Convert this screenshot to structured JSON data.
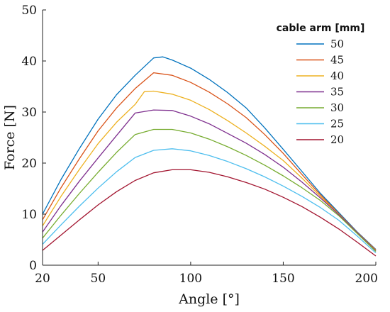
{
  "chart_data": {
    "type": "line",
    "xlabel": "Angle [°]",
    "ylabel": "Force [N]",
    "xlim": [
      20,
      200
    ],
    "ylim": [
      0,
      50
    ],
    "xticks": [
      20,
      50,
      100,
      150,
      200
    ],
    "yticks": [
      0,
      10,
      20,
      30,
      40,
      50
    ],
    "grid": false,
    "legend": {
      "title": "cable arm [mm]",
      "placement": "top-right"
    },
    "series": [
      {
        "name": "50",
        "color": "#0072BD",
        "x": [
          20,
          30,
          40,
          50,
          60,
          70,
          80,
          85,
          90,
          100,
          110,
          120,
          130,
          140,
          150,
          160,
          170,
          180,
          190,
          200
        ],
        "y": [
          10.0,
          16.8,
          22.9,
          28.6,
          33.4,
          37.2,
          40.6,
          40.8,
          40.2,
          38.6,
          36.4,
          33.8,
          30.8,
          26.9,
          22.7,
          18.4,
          14.1,
          10.3,
          6.5,
          3.1
        ]
      },
      {
        "name": "45",
        "color": "#D95319",
        "x": [
          20,
          30,
          40,
          50,
          60,
          70,
          80,
          90,
          100,
          110,
          120,
          130,
          140,
          150,
          160,
          170,
          180,
          190,
          200
        ],
        "y": [
          8.9,
          15.2,
          20.9,
          26.3,
          30.8,
          34.6,
          37.7,
          37.2,
          35.8,
          33.9,
          31.6,
          28.9,
          25.6,
          21.9,
          17.8,
          13.8,
          10.1,
          6.4,
          3.0
        ]
      },
      {
        "name": "40",
        "color": "#EDB120",
        "x": [
          20,
          30,
          40,
          50,
          60,
          70,
          75,
          80,
          90,
          100,
          110,
          120,
          130,
          140,
          150,
          160,
          170,
          180,
          190,
          200
        ],
        "y": [
          7.7,
          13.5,
          18.8,
          23.8,
          28.0,
          31.5,
          34.0,
          34.1,
          33.5,
          32.3,
          30.5,
          28.3,
          25.9,
          23.3,
          20.5,
          17.1,
          13.5,
          10.0,
          6.3,
          2.9
        ]
      },
      {
        "name": "35",
        "color": "#7E2F8E",
        "x": [
          20,
          30,
          40,
          50,
          60,
          70,
          80,
          90,
          100,
          110,
          120,
          130,
          140,
          150,
          160,
          170,
          180,
          190,
          200
        ],
        "y": [
          6.5,
          11.7,
          16.5,
          21.0,
          25.4,
          29.8,
          30.4,
          30.3,
          29.2,
          27.7,
          25.8,
          23.9,
          21.7,
          19.2,
          16.3,
          13.2,
          9.9,
          6.3,
          2.8
        ]
      },
      {
        "name": "30",
        "color": "#77AC30",
        "x": [
          20,
          30,
          40,
          50,
          60,
          70,
          80,
          90,
          100,
          110,
          120,
          130,
          140,
          150,
          160,
          170,
          180,
          190,
          200
        ],
        "y": [
          5.3,
          9.8,
          14.1,
          18.2,
          22.1,
          25.6,
          26.6,
          26.6,
          25.9,
          24.7,
          23.2,
          21.5,
          19.6,
          17.5,
          15.2,
          12.7,
          9.7,
          6.2,
          2.7
        ]
      },
      {
        "name": "25",
        "color": "#4DBEEE",
        "x": [
          20,
          30,
          40,
          50,
          60,
          70,
          80,
          90,
          100,
          110,
          120,
          130,
          140,
          150,
          160,
          170,
          180,
          190,
          200
        ],
        "y": [
          4.1,
          7.9,
          11.6,
          15.1,
          18.3,
          21.1,
          22.5,
          22.8,
          22.4,
          21.5,
          20.3,
          18.9,
          17.3,
          15.5,
          13.5,
          11.3,
          8.8,
          5.7,
          2.4
        ]
      },
      {
        "name": "20",
        "color": "#A2142F",
        "x": [
          20,
          30,
          40,
          50,
          60,
          70,
          80,
          90,
          100,
          110,
          120,
          130,
          140,
          150,
          160,
          170,
          180,
          190,
          200
        ],
        "y": [
          2.9,
          5.9,
          8.9,
          11.8,
          14.4,
          16.6,
          18.1,
          18.7,
          18.7,
          18.2,
          17.3,
          16.2,
          14.9,
          13.3,
          11.5,
          9.4,
          7.1,
          4.5,
          1.8
        ]
      }
    ]
  }
}
